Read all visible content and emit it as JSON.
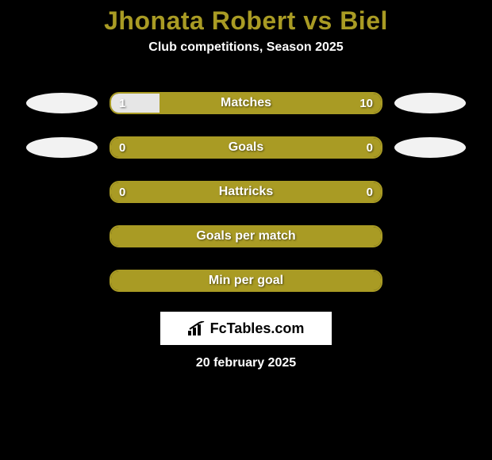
{
  "title_color": "#a99b24",
  "title": "Jhonata Robert vs Biel",
  "subtitle": "Club competitions, Season 2025",
  "bar_border_color": "#a99b24",
  "bar_bg_color": "#a99b24",
  "bar_fill_color": "#e6e6e6",
  "badge_color_left": "#f2f2f2",
  "badge_color_right": "#f2f2f2",
  "rows": [
    {
      "label": "Matches",
      "left_value": "1",
      "right_value": "10",
      "left_pct": 18,
      "right_pct": 0,
      "show_left_badge": true,
      "show_right_badge": true
    },
    {
      "label": "Goals",
      "left_value": "0",
      "right_value": "0",
      "left_pct": 0,
      "right_pct": 0,
      "show_left_badge": true,
      "show_right_badge": true
    },
    {
      "label": "Hattricks",
      "left_value": "0",
      "right_value": "0",
      "left_pct": 0,
      "right_pct": 0,
      "show_left_badge": false,
      "show_right_badge": false
    },
    {
      "label": "Goals per match",
      "left_value": "",
      "right_value": "",
      "left_pct": 0,
      "right_pct": 0,
      "show_left_badge": false,
      "show_right_badge": false
    },
    {
      "label": "Min per goal",
      "left_value": "",
      "right_value": "",
      "left_pct": 0,
      "right_pct": 0,
      "show_left_badge": false,
      "show_right_badge": false
    }
  ],
  "logo_text": "FcTables.com",
  "date": "20 february 2025"
}
